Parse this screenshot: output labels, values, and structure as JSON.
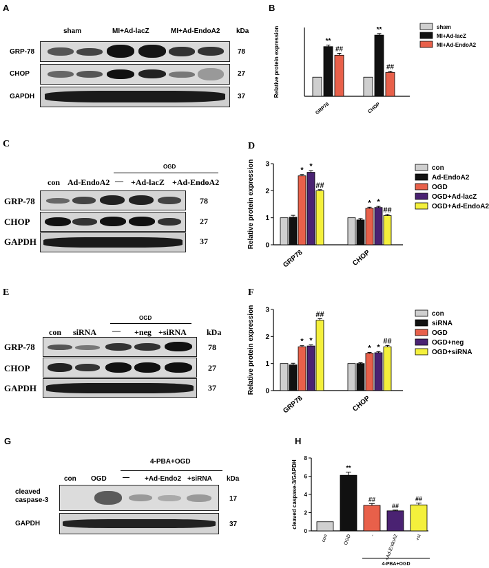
{
  "panelA": {
    "label": "A",
    "headers": [
      "sham",
      "MI+Ad-lacZ",
      "MI+Ad-EndoA2"
    ],
    "kda_header": "kDa",
    "rows": [
      {
        "name": "GRP-78",
        "kda": "78"
      },
      {
        "name": "CHOP",
        "kda": "27"
      },
      {
        "name": "GAPDH",
        "kda": "37"
      }
    ]
  },
  "panelC": {
    "label": "C",
    "group": "OGD",
    "headers": [
      "con",
      "Ad-EndoA2",
      "—",
      "+Ad-lacZ",
      "+Ad-EndoA2"
    ],
    "rows": [
      {
        "name": "GRP-78",
        "kda": "78"
      },
      {
        "name": "CHOP",
        "kda": "27"
      },
      {
        "name": "GAPDH",
        "kda": "37"
      }
    ]
  },
  "panelE": {
    "label": "E",
    "group": "OGD",
    "headers": [
      "con",
      "siRNA",
      "—",
      "+neg",
      "+siRNA"
    ],
    "kda_header": "kDa",
    "rows": [
      {
        "name": "GRP-78",
        "kda": "78"
      },
      {
        "name": "CHOP",
        "kda": "27"
      },
      {
        "name": "GAPDH",
        "kda": "37"
      }
    ]
  },
  "panelG": {
    "label": "G",
    "group": "4-PBA+OGD",
    "headers": [
      "con",
      "OGD",
      "—",
      "+Ad-Endo2",
      "+siRNA"
    ],
    "kda_header": "kDa",
    "rows": [
      {
        "name": "cleaved caspase-3",
        "kda": "17"
      },
      {
        "name": "GAPDH",
        "kda": "37"
      }
    ]
  },
  "chart_data": [
    {
      "panel": "B",
      "type": "bar",
      "ylabel": "Relative protein expression",
      "categories": [
        "GRP78",
        "CHOP"
      ],
      "series": [
        {
          "name": "sham",
          "color": "#cfcfcf",
          "values": [
            1.0,
            1.0
          ],
          "errors": [
            0,
            0
          ],
          "marks": [
            "",
            ""
          ]
        },
        {
          "name": "MI+Ad-lacZ",
          "color": "#111111",
          "values": [
            2.6,
            3.2
          ],
          "errors": [
            0.08,
            0.08
          ],
          "marks": [
            "**",
            "**"
          ]
        },
        {
          "name": "MI+Ad-EndoA2",
          "color": "#e8604a",
          "values": [
            2.15,
            1.25
          ],
          "errors": [
            0.1,
            0.06
          ],
          "marks": [
            "##",
            "##"
          ]
        }
      ],
      "ylim": [
        0,
        3.6
      ]
    },
    {
      "panel": "D",
      "type": "bar",
      "ylabel": "Relative protein expression",
      "yticks": [
        "0",
        "1",
        "2",
        "3"
      ],
      "categories": [
        "GRP78",
        "CHOP"
      ],
      "series": [
        {
          "name": "con",
          "color": "#cfcfcf",
          "values": [
            1.0,
            1.0
          ],
          "errors": [
            0,
            0
          ],
          "marks": [
            "",
            ""
          ]
        },
        {
          "name": "Ad-EndoA2",
          "color": "#111111",
          "values": [
            1.02,
            0.92
          ],
          "errors": [
            0.07,
            0.05
          ],
          "marks": [
            "",
            ""
          ]
        },
        {
          "name": "OGD",
          "color": "#e8604a",
          "values": [
            2.55,
            1.35
          ],
          "errors": [
            0.05,
            0.04
          ],
          "marks": [
            "*",
            "*"
          ]
        },
        {
          "name": "OGD+Ad-lacZ",
          "color": "#4a2272",
          "values": [
            2.68,
            1.38
          ],
          "errors": [
            0.06,
            0.04
          ],
          "marks": [
            "*",
            "*"
          ]
        },
        {
          "name": "OGD+Ad-EndoA2",
          "color": "#f4f03c",
          "values": [
            2.0,
            1.08
          ],
          "errors": [
            0.04,
            0.04
          ],
          "marks": [
            "##",
            "##"
          ]
        }
      ],
      "ylim": [
        0,
        3
      ]
    },
    {
      "panel": "F",
      "type": "bar",
      "ylabel": "Relative protein expression",
      "yticks": [
        "0",
        "1",
        "2",
        "3"
      ],
      "categories": [
        "GRP78",
        "CHOP"
      ],
      "series": [
        {
          "name": "con",
          "color": "#cfcfcf",
          "values": [
            1.0,
            1.0
          ],
          "errors": [
            0,
            0
          ],
          "marks": [
            "",
            ""
          ]
        },
        {
          "name": "siRNA",
          "color": "#111111",
          "values": [
            0.95,
            1.0
          ],
          "errors": [
            0.06,
            0.03
          ],
          "marks": [
            "",
            ""
          ]
        },
        {
          "name": "OGD",
          "color": "#e8604a",
          "values": [
            1.62,
            1.38
          ],
          "errors": [
            0.04,
            0.03
          ],
          "marks": [
            "*",
            "*"
          ]
        },
        {
          "name": "OGD+neg",
          "color": "#4a2272",
          "values": [
            1.65,
            1.4
          ],
          "errors": [
            0.04,
            0.04
          ],
          "marks": [
            "*",
            "*"
          ]
        },
        {
          "name": "OGD+siRNA",
          "color": "#f4f03c",
          "values": [
            2.6,
            1.62
          ],
          "errors": [
            0.06,
            0.05
          ],
          "marks": [
            "##",
            "##"
          ]
        }
      ],
      "ylim": [
        0,
        3
      ]
    },
    {
      "panel": "H",
      "type": "bar",
      "ylabel": "cleaved caspase-3/GAPDH",
      "yticks": [
        "0",
        "2",
        "4",
        "6",
        "8"
      ],
      "categories": [
        "con",
        "OGD",
        "-",
        "+Ad-EndoA2",
        "+si"
      ],
      "group_label": "4-PBA+OGD",
      "values": [
        1.0,
        6.1,
        2.8,
        2.2,
        2.85
      ],
      "errors": [
        0,
        0.35,
        0.2,
        0.08,
        0.2
      ],
      "colors": [
        "#cfcfcf",
        "#111111",
        "#e8604a",
        "#4a2272",
        "#f4f03c"
      ],
      "marks": [
        "",
        "**",
        "##",
        "##",
        "##"
      ],
      "ylim": [
        0,
        8
      ]
    }
  ],
  "labels": {
    "B": "B",
    "D": "D",
    "F": "F",
    "H": "H"
  }
}
